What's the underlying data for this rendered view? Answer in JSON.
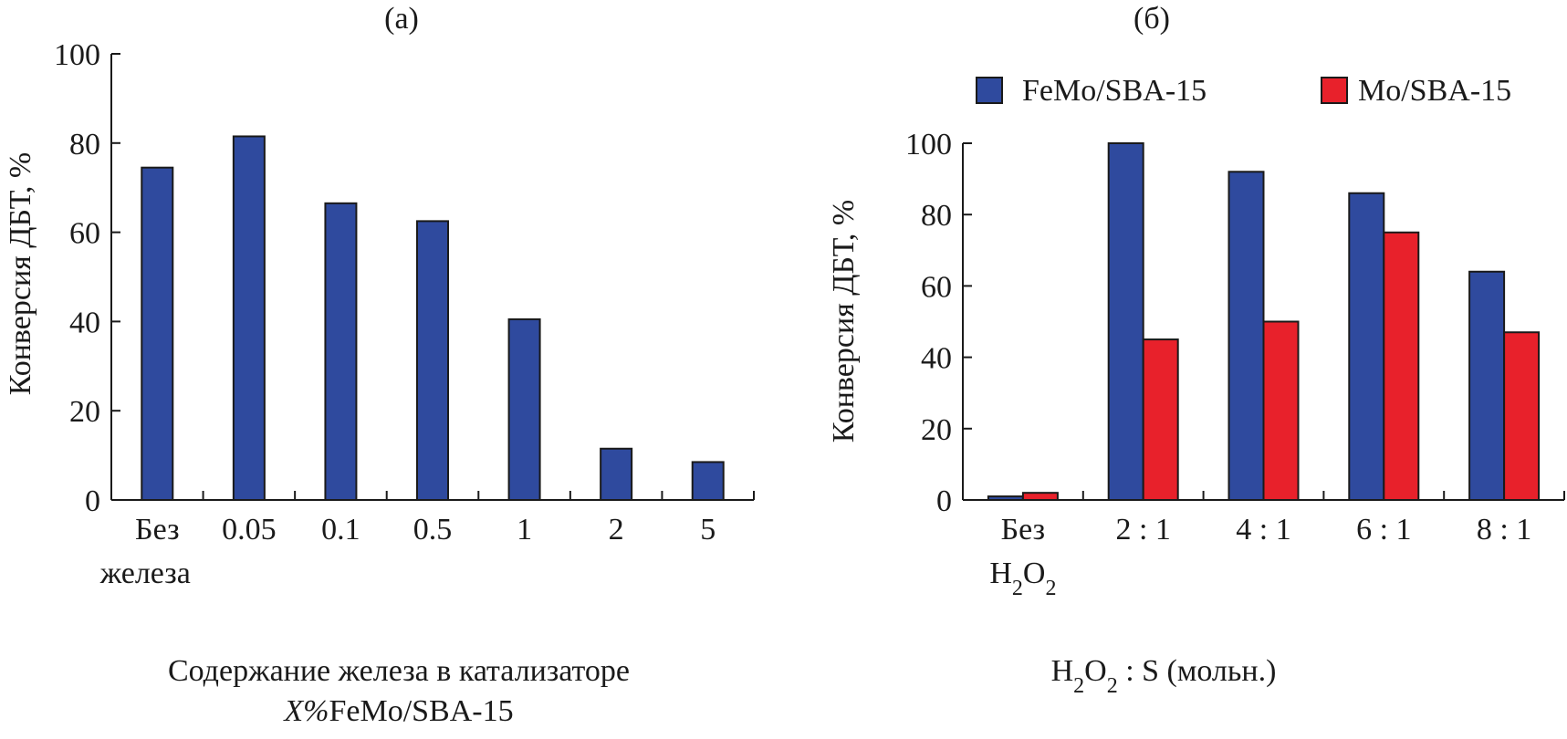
{
  "chart_data": [
    {
      "type": "bar",
      "panel_label": "(a)",
      "categories": [
        [
          "Без",
          "железа"
        ],
        [
          "0.05"
        ],
        [
          "0.1"
        ],
        [
          "0.5"
        ],
        [
          "1"
        ],
        [
          "2"
        ],
        [
          "5"
        ]
      ],
      "series": [
        {
          "values": [
            74.5,
            81.5,
            66.5,
            62.5,
            40.5,
            11.5,
            8.5
          ],
          "color": "#2f4a9e"
        }
      ],
      "xlabel": [
        "Содержание железа в катализаторе",
        "X%FeMo/SBA-15"
      ],
      "ylabel": "Конверсия ДБТ, %",
      "ylim": [
        0,
        100
      ],
      "yticks": [
        0,
        20,
        40,
        60,
        80,
        100
      ]
    },
    {
      "type": "bar",
      "panel_label": "(б)",
      "categories": [
        [
          "Без",
          "H₂O₂"
        ],
        [
          "2 : 1"
        ],
        [
          "4 : 1"
        ],
        [
          "6 : 1"
        ],
        [
          "8 : 1"
        ]
      ],
      "series": [
        {
          "name": "FeMo/SBA-15",
          "values": [
            1,
            100,
            92,
            86,
            64
          ],
          "color": "#2f4a9e"
        },
        {
          "name": "Mo/SBA-15",
          "values": [
            2,
            45,
            50,
            75,
            47
          ],
          "color": "#e8212b"
        }
      ],
      "xlabel": [
        "H₂O₂ : S (мольн.)"
      ],
      "ylabel": "Конверсия ДБТ, %",
      "ylim": [
        0,
        100
      ],
      "yticks": [
        0,
        20,
        40,
        60,
        80,
        100
      ],
      "legend_position": "top"
    }
  ]
}
